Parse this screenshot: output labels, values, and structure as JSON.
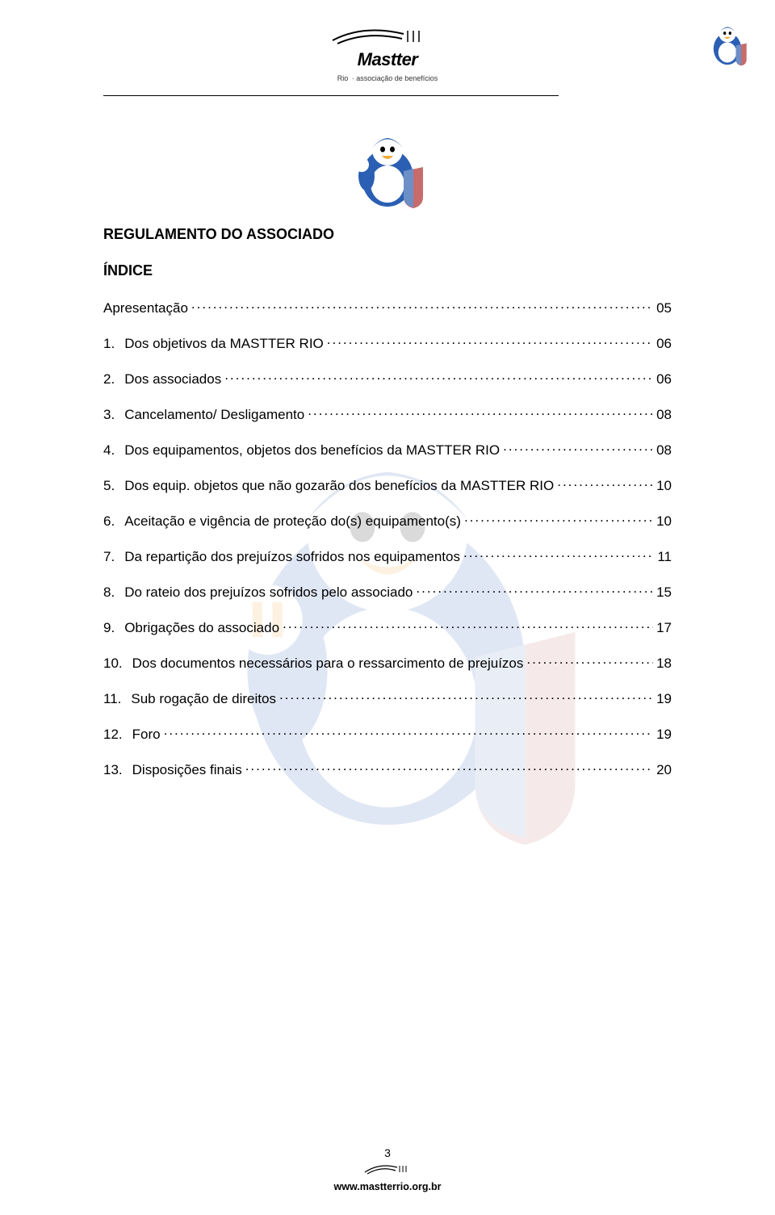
{
  "header": {
    "brand": "Mastter",
    "tagline_left": "Rio",
    "tagline_right": "associação de benefícios"
  },
  "document": {
    "title": "REGULAMENTO DO ASSOCIADO",
    "subtitle": "ÍNDICE"
  },
  "toc": [
    {
      "num": "",
      "label": "Apresentação",
      "page": "05"
    },
    {
      "num": "1.",
      "label": "Dos objetivos da MASTTER RIO",
      "page": "06"
    },
    {
      "num": "2.",
      "label": "Dos associados",
      "page": "06"
    },
    {
      "num": "3.",
      "label": "Cancelamento/ Desligamento",
      "page": "08"
    },
    {
      "num": "4.",
      "label": "Dos equipamentos, objetos dos benefícios da MASTTER RIO",
      "page": "08"
    },
    {
      "num": "5.",
      "label": "Dos equip. objetos que não gozarão dos benefícios da MASTTER RIO",
      "page": "10"
    },
    {
      "num": "6.",
      "label": "Aceitação e vigência de proteção do(s) equipamento(s)",
      "page": "10"
    },
    {
      "num": "7.",
      "label": "Da repartição dos prejuízos sofridos nos equipamentos",
      "page": "11"
    },
    {
      "num": "8.",
      "label": "Do rateio dos prejuízos sofridos pelo associado",
      "page": "15"
    },
    {
      "num": "9.",
      "label": "Obrigações do associado",
      "page": "17"
    },
    {
      "num": "10.",
      "label": "Dos documentos necessários para o ressarcimento de prejuízos",
      "page": "18"
    },
    {
      "num": "11.",
      "label": "Sub rogação de direitos",
      "page": "19"
    },
    {
      "num": "12.",
      "label": "Foro",
      "page": "19"
    },
    {
      "num": "13.",
      "label": "Disposições finais",
      "page": "20"
    }
  ],
  "footer": {
    "page_number": "3",
    "url": "www.mastterrio.org.br"
  },
  "colors": {
    "text": "#000000",
    "mascot_blue": "#2b5fb3",
    "mascot_red": "#c23a3a",
    "mascot_beak": "#f2a93c",
    "mascot_white": "#ffffff",
    "shield_blue": "#6d8fc7",
    "shield_red": "#c76b6b"
  }
}
